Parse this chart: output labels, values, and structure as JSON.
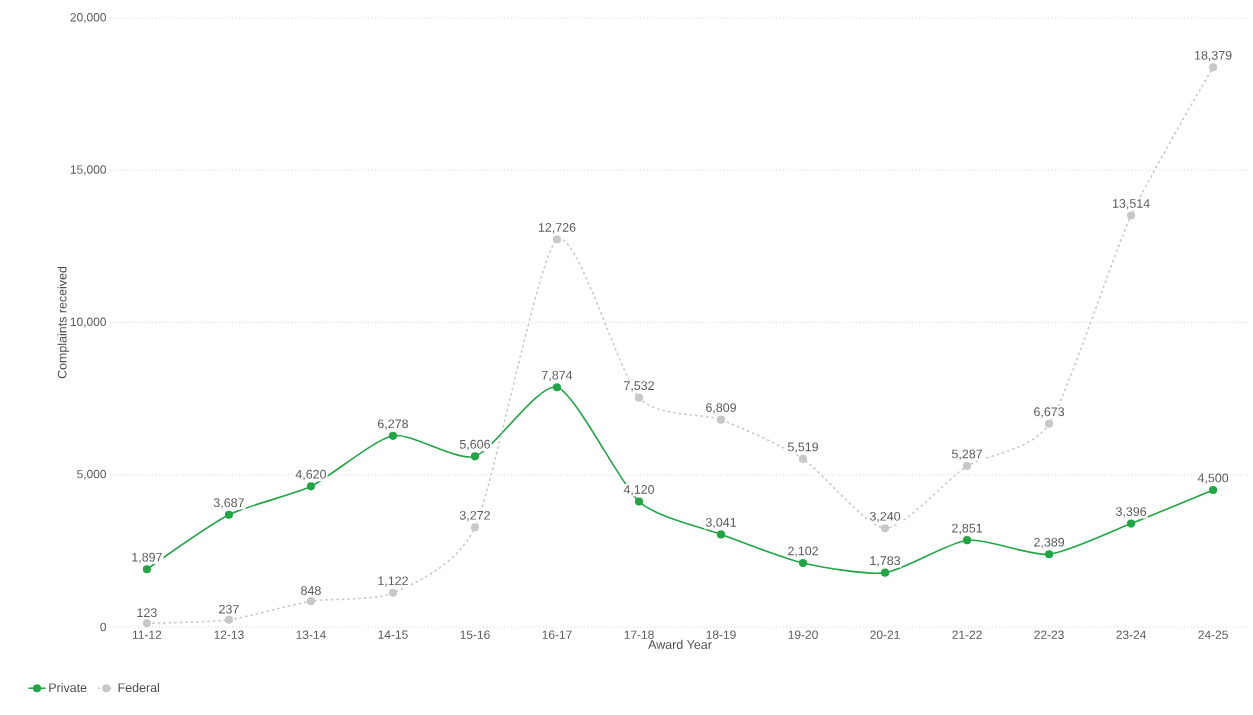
{
  "chart_data": {
    "type": "line",
    "xlabel": "Award Year",
    "ylabel": "Complaints received",
    "categories": [
      "11-12",
      "12-13",
      "13-14",
      "14-15",
      "15-16",
      "16-17",
      "17-18",
      "18-19",
      "19-20",
      "20-21",
      "21-22",
      "22-23",
      "23-24",
      "24-25"
    ],
    "series": [
      {
        "name": "Private",
        "color": "#22a645",
        "line_style": "solid",
        "values": [
          1897,
          3687,
          4620,
          6278,
          5606,
          7874,
          4120,
          3041,
          2102,
          1783,
          2851,
          2389,
          3396,
          4500
        ],
        "value_labels": [
          "1,897",
          "3,687",
          "4,620",
          "6,278",
          "5,606",
          "7,874",
          "4,120",
          "3,041",
          "2,102",
          "1,783",
          "2,851",
          "2,389",
          "3,396",
          "4,500"
        ]
      },
      {
        "name": "Federal",
        "color": "#c8c8c8",
        "line_style": "dotted",
        "values": [
          123,
          237,
          848,
          1122,
          3272,
          12726,
          7532,
          6809,
          5519,
          3240,
          5287,
          6673,
          13514,
          18379
        ],
        "value_labels": [
          "123",
          "237",
          "848",
          "1,122",
          "3,272",
          "12,726",
          "7,532",
          "6,809",
          "5,519",
          "3,240",
          "5,287",
          "6,673",
          "13,514",
          "18,379"
        ]
      }
    ],
    "ylim": [
      0,
      20000
    ],
    "yticks": [
      {
        "value": 0,
        "label": "0"
      },
      {
        "value": 5000,
        "label": "5,000"
      },
      {
        "value": 10000,
        "label": "10,000"
      },
      {
        "value": 15000,
        "label": "15,000"
      },
      {
        "value": 20000,
        "label": "20,000"
      }
    ],
    "grid": "y",
    "legend": "bottom left",
    "marker": "circle"
  }
}
